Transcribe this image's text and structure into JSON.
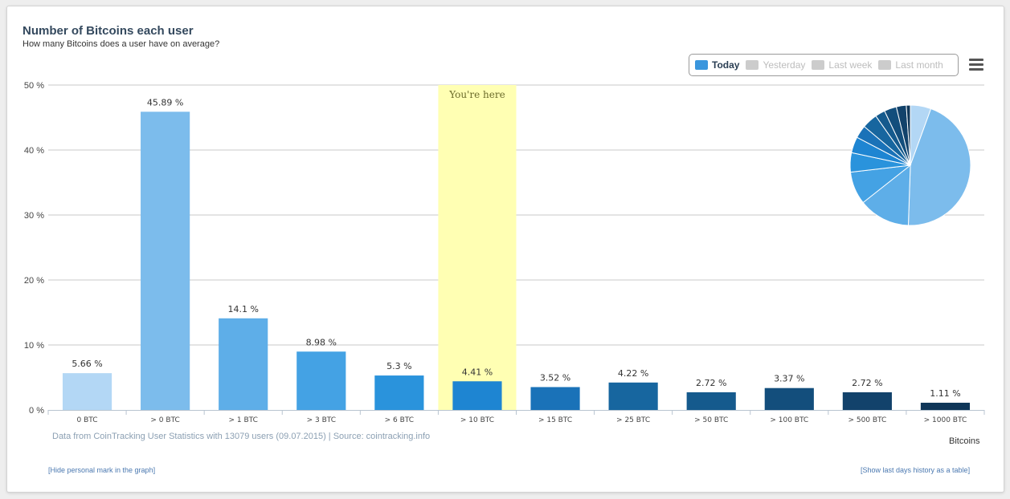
{
  "chart_data": {
    "type": "bar",
    "title": "Number of Bitcoins each user",
    "subtitle": "How many Bitcoins does a user have on average?",
    "xlabel": "Bitcoins",
    "ylabel": "",
    "ylim": [
      0,
      50
    ],
    "yticks": [
      0,
      10,
      20,
      30,
      40,
      50
    ],
    "ytick_labels": [
      "0 %",
      "10 %",
      "20 %",
      "30 %",
      "40 %",
      "50 %"
    ],
    "categories": [
      "0 BTC",
      "> 0 BTC",
      "> 1 BTC",
      "> 3 BTC",
      "> 6 BTC",
      "> 10 BTC",
      "> 15 BTC",
      "> 25 BTC",
      "> 50 BTC",
      "> 100 BTC",
      "> 500 BTC",
      "> 1000 BTC"
    ],
    "values": [
      5.66,
      45.89,
      14.1,
      8.98,
      5.3,
      4.41,
      3.52,
      4.22,
      2.72,
      3.37,
      2.72,
      1.11
    ],
    "data_labels": [
      "5.66 %",
      "45.89 %",
      "14.1 %",
      "8.98 %",
      "5.3 %",
      "4.41 %",
      "3.52 %",
      "4.22 %",
      "2.72 %",
      "3.37 %",
      "2.72 %",
      "1.11 %"
    ],
    "colors": [
      "#b3d7f5",
      "#7cbcec",
      "#5eaee8",
      "#44a2e4",
      "#2a93dc",
      "#1e85d2",
      "#1a72b8",
      "#17669f",
      "#155a8d",
      "#134e7c",
      "#12426b",
      "#0f3658"
    ],
    "highlight": {
      "category_index": 5,
      "label": "You're here",
      "color": "#ffffb3"
    },
    "grid": true,
    "legend_position": "top-right",
    "inset": {
      "type": "pie",
      "position": "top-right"
    }
  },
  "legend": {
    "items": [
      {
        "label": "Today",
        "color": "#3a96dd",
        "active": true
      },
      {
        "label": "Yesterday",
        "color": "#cccccc",
        "active": false
      },
      {
        "label": "Last week",
        "color": "#cccccc",
        "active": false
      },
      {
        "label": "Last month",
        "color": "#cccccc",
        "active": false
      }
    ]
  },
  "credits": "Data from CoinTracking User Statistics with 13079 users (09.07.2015) | Source: cointracking.info",
  "links": {
    "hide_mark": "[Hide personal mark in the graph]",
    "show_history": "[Show last days history as a table]"
  }
}
